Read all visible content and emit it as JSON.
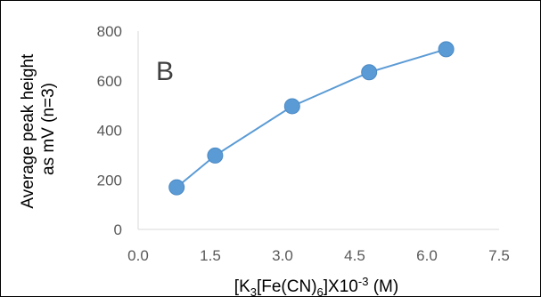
{
  "chart_data": {
    "type": "line",
    "panel_label": "B",
    "title": "",
    "xlabel": {
      "prefix": "[K",
      "sub1": "3",
      "middle": "[Fe(CN)",
      "sub2": "6",
      "suffix_a": "]X10",
      "sup": "-3",
      "suffix_b": " (M)"
    },
    "ylabel": [
      "Average peak height",
      "as mV (n=3)"
    ],
    "x_ticks": [
      "0.0",
      "1.5",
      "3.0",
      "4.5",
      "6.0",
      "7.5"
    ],
    "y_ticks": [
      "0",
      "200",
      "400",
      "600",
      "800"
    ],
    "xlim": [
      0,
      7.5
    ],
    "ylim": [
      0,
      800
    ],
    "grid": false,
    "marker": "circle",
    "colors": {
      "line": "#5b9bd5",
      "marker": "#5b9bd5",
      "axis": "#d9d9d9"
    },
    "series": [
      {
        "x": [
          0.8,
          1.6,
          3.2,
          4.8,
          6.4
        ],
        "y": [
          170,
          298,
          497,
          634,
          727
        ]
      }
    ]
  }
}
